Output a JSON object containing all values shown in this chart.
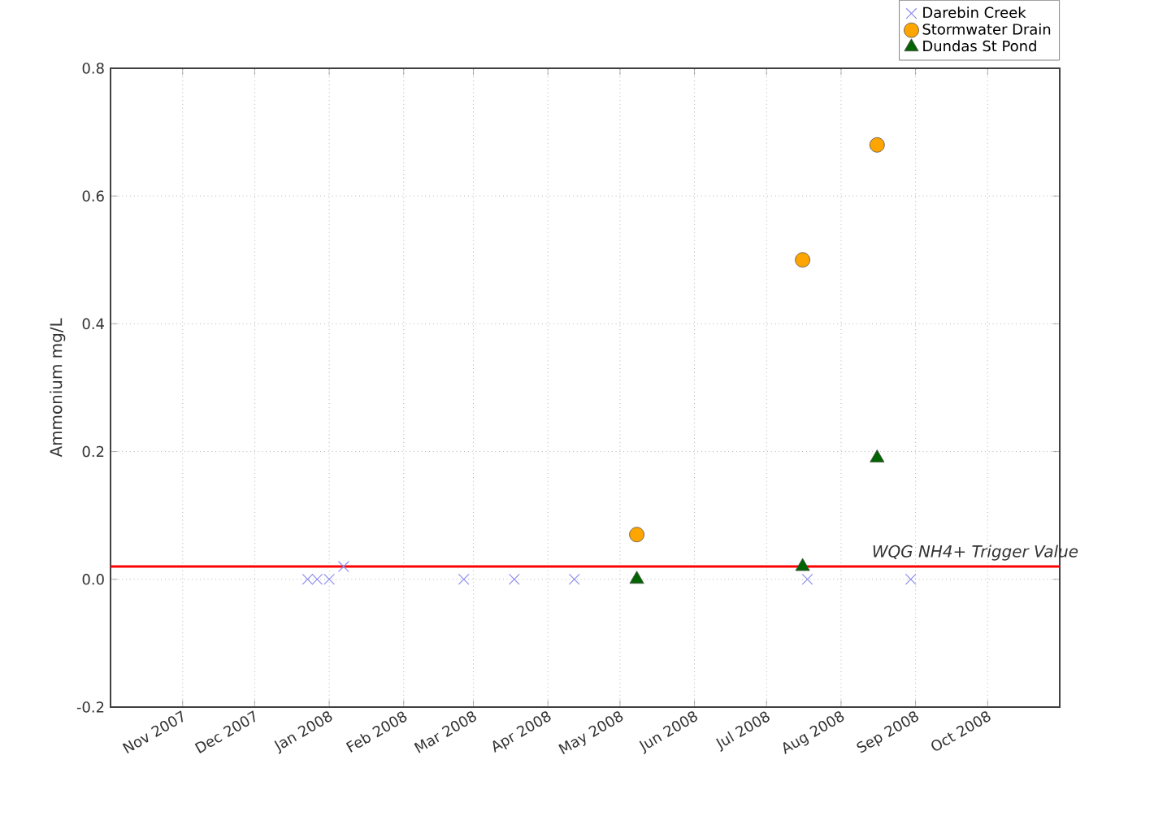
{
  "chart_data": {
    "type": "scatter",
    "ylabel": "Ammonium mg/L",
    "xlim": [
      "2007-10-02",
      "2008-10-31"
    ],
    "ylim": [
      -0.2,
      0.8
    ],
    "xticks": [
      {
        "value": "2007-11-01",
        "label": "Nov 2007"
      },
      {
        "value": "2007-12-01",
        "label": "Dec 2007"
      },
      {
        "value": "2008-01-01",
        "label": "Jan 2008"
      },
      {
        "value": "2008-02-01",
        "label": "Feb 2008"
      },
      {
        "value": "2008-03-01",
        "label": "Mar 2008"
      },
      {
        "value": "2008-04-01",
        "label": "Apr 2008"
      },
      {
        "value": "2008-05-01",
        "label": "May 2008"
      },
      {
        "value": "2008-06-01",
        "label": "Jun 2008"
      },
      {
        "value": "2008-07-01",
        "label": "Jul 2008"
      },
      {
        "value": "2008-08-01",
        "label": "Aug 2008"
      },
      {
        "value": "2008-09-01",
        "label": "Sep 2008"
      },
      {
        "value": "2008-10-01",
        "label": "Oct 2008"
      }
    ],
    "yticks": [
      -0.2,
      {
        "value": 0,
        "label": "0.0"
      },
      0.2,
      0.4,
      0.6,
      0.8
    ],
    "grid": true,
    "legend": "top right",
    "series": [
      {
        "name": "Darebin Creek",
        "color": "#8c8cf0",
        "marker": "cross",
        "x": [
          "2007-12-23",
          "2007-12-27",
          "2008-01-01",
          "2008-01-07",
          "2008-02-26",
          "2008-03-18",
          "2008-04-12",
          "2008-07-18",
          "2008-08-30"
        ],
        "values": [
          0,
          0,
          0,
          0.02,
          0,
          0,
          0,
          0,
          0
        ]
      },
      {
        "name": "Stormwater Drain",
        "color": "#ffa500",
        "marker": "circle",
        "x": [
          "2008-05-08",
          "2008-07-16",
          "2008-08-16"
        ],
        "values": [
          0.07,
          0.5,
          0.68
        ]
      },
      {
        "name": "Dundas St Pond",
        "color": "#006400",
        "marker": "triangle",
        "x": [
          "2008-05-08",
          "2008-07-16",
          "2008-08-16"
        ],
        "values": [
          0,
          0.02,
          0.19
        ]
      }
    ],
    "ref_lines": [
      {
        "axis": "y",
        "value": 0.02,
        "label": "WQG NH4+ Trigger Value",
        "color": "#ff0000",
        "line_style": "solid"
      }
    ]
  }
}
